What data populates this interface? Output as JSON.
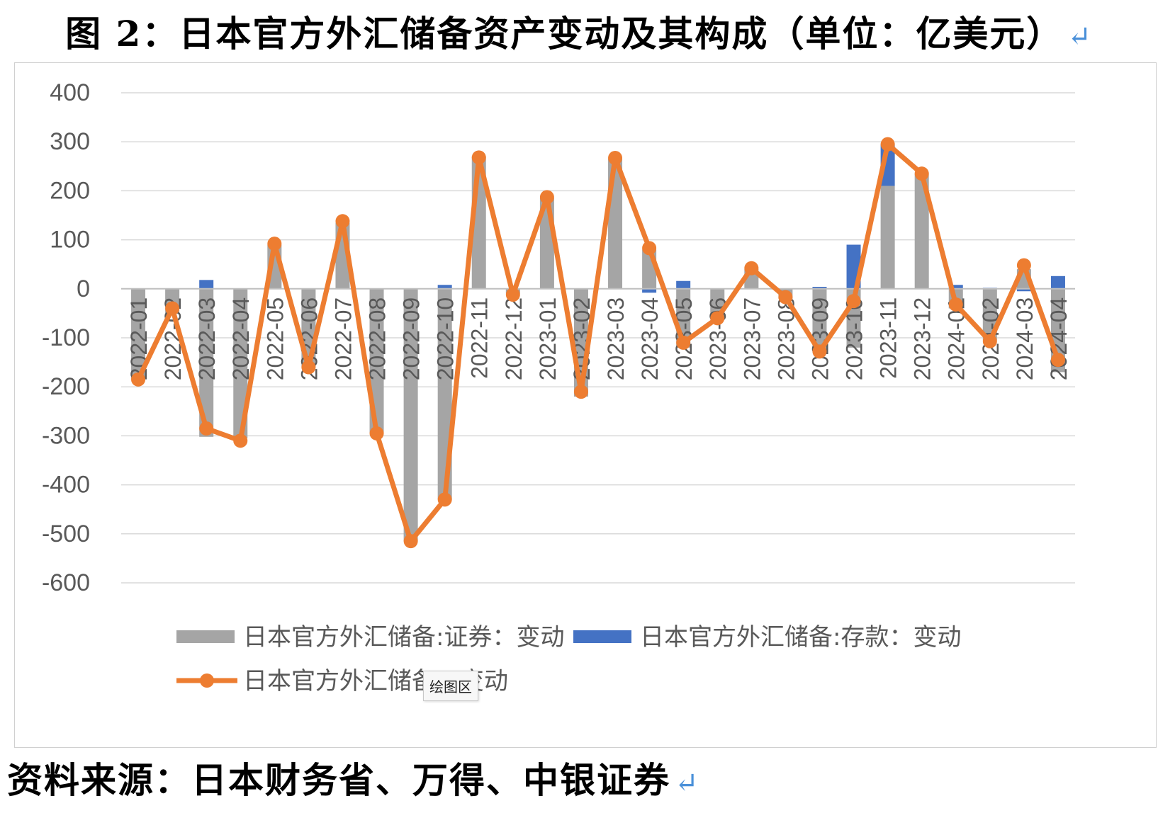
{
  "title": "图 2：日本官方外汇储备资产变动及其构成（单位：亿美元）",
  "title_return_mark": "↵",
  "source": "资料来源：日本财务省、万得、中银证券",
  "source_return_mark": "↵",
  "tooltip": "绘图区",
  "colors": {
    "securities": "#a5a5a5",
    "deposits": "#4472c4",
    "total": "#ed7d31",
    "grid": "#d9d9d9",
    "axis_text": "#595959"
  },
  "chart_data": {
    "type": "bar",
    "stacked": true,
    "title": "",
    "xlabel": "",
    "ylabel": "",
    "ylim": [
      -600,
      400
    ],
    "yticks": [
      400,
      300,
      200,
      100,
      0,
      -100,
      -200,
      -300,
      -400,
      -500,
      -600
    ],
    "grid": true,
    "legend_position": "bottom",
    "categories": [
      "2022-01",
      "2022-02",
      "2022-03",
      "2022-04",
      "2022-05",
      "2022-06",
      "2022-07",
      "2022-08",
      "2022-09",
      "2022-10",
      "2022-11",
      "2022-12",
      "2023-01",
      "2023-02",
      "2023-03",
      "2023-04",
      "2023-05",
      "2023-06",
      "2023-07",
      "2023-08",
      "2023-09",
      "2023-10",
      "2023-11",
      "2023-12",
      "2024-01",
      "2024-02",
      "2024-03",
      "2024-04"
    ],
    "series": [
      {
        "name": "日本官方外汇储备:证券：变动",
        "kind": "bar",
        "values": [
          -185,
          -50,
          -302,
          -305,
          90,
          -160,
          135,
          -295,
          -515,
          -430,
          270,
          -10,
          185,
          -220,
          265,
          80,
          -120,
          -60,
          40,
          -20,
          -130,
          -120,
          210,
          235,
          -40,
          -105,
          40,
          -170
        ]
      },
      {
        "name": "日本官方外汇储备:存款：变动",
        "kind": "bar",
        "values": [
          0,
          0,
          18,
          0,
          0,
          0,
          0,
          0,
          0,
          8,
          0,
          0,
          0,
          0,
          0,
          -8,
          16,
          0,
          0,
          0,
          4,
          90,
          85,
          0,
          8,
          2,
          -5,
          26
        ]
      },
      {
        "name": "日本官方外汇储备：变动",
        "kind": "line",
        "values": [
          -185,
          -40,
          -285,
          -310,
          92,
          -160,
          138,
          -295,
          -515,
          -430,
          268,
          -12,
          187,
          -210,
          267,
          83,
          -110,
          -60,
          42,
          -17,
          -128,
          -25,
          295,
          235,
          -32,
          -107,
          48,
          -145
        ]
      }
    ]
  }
}
